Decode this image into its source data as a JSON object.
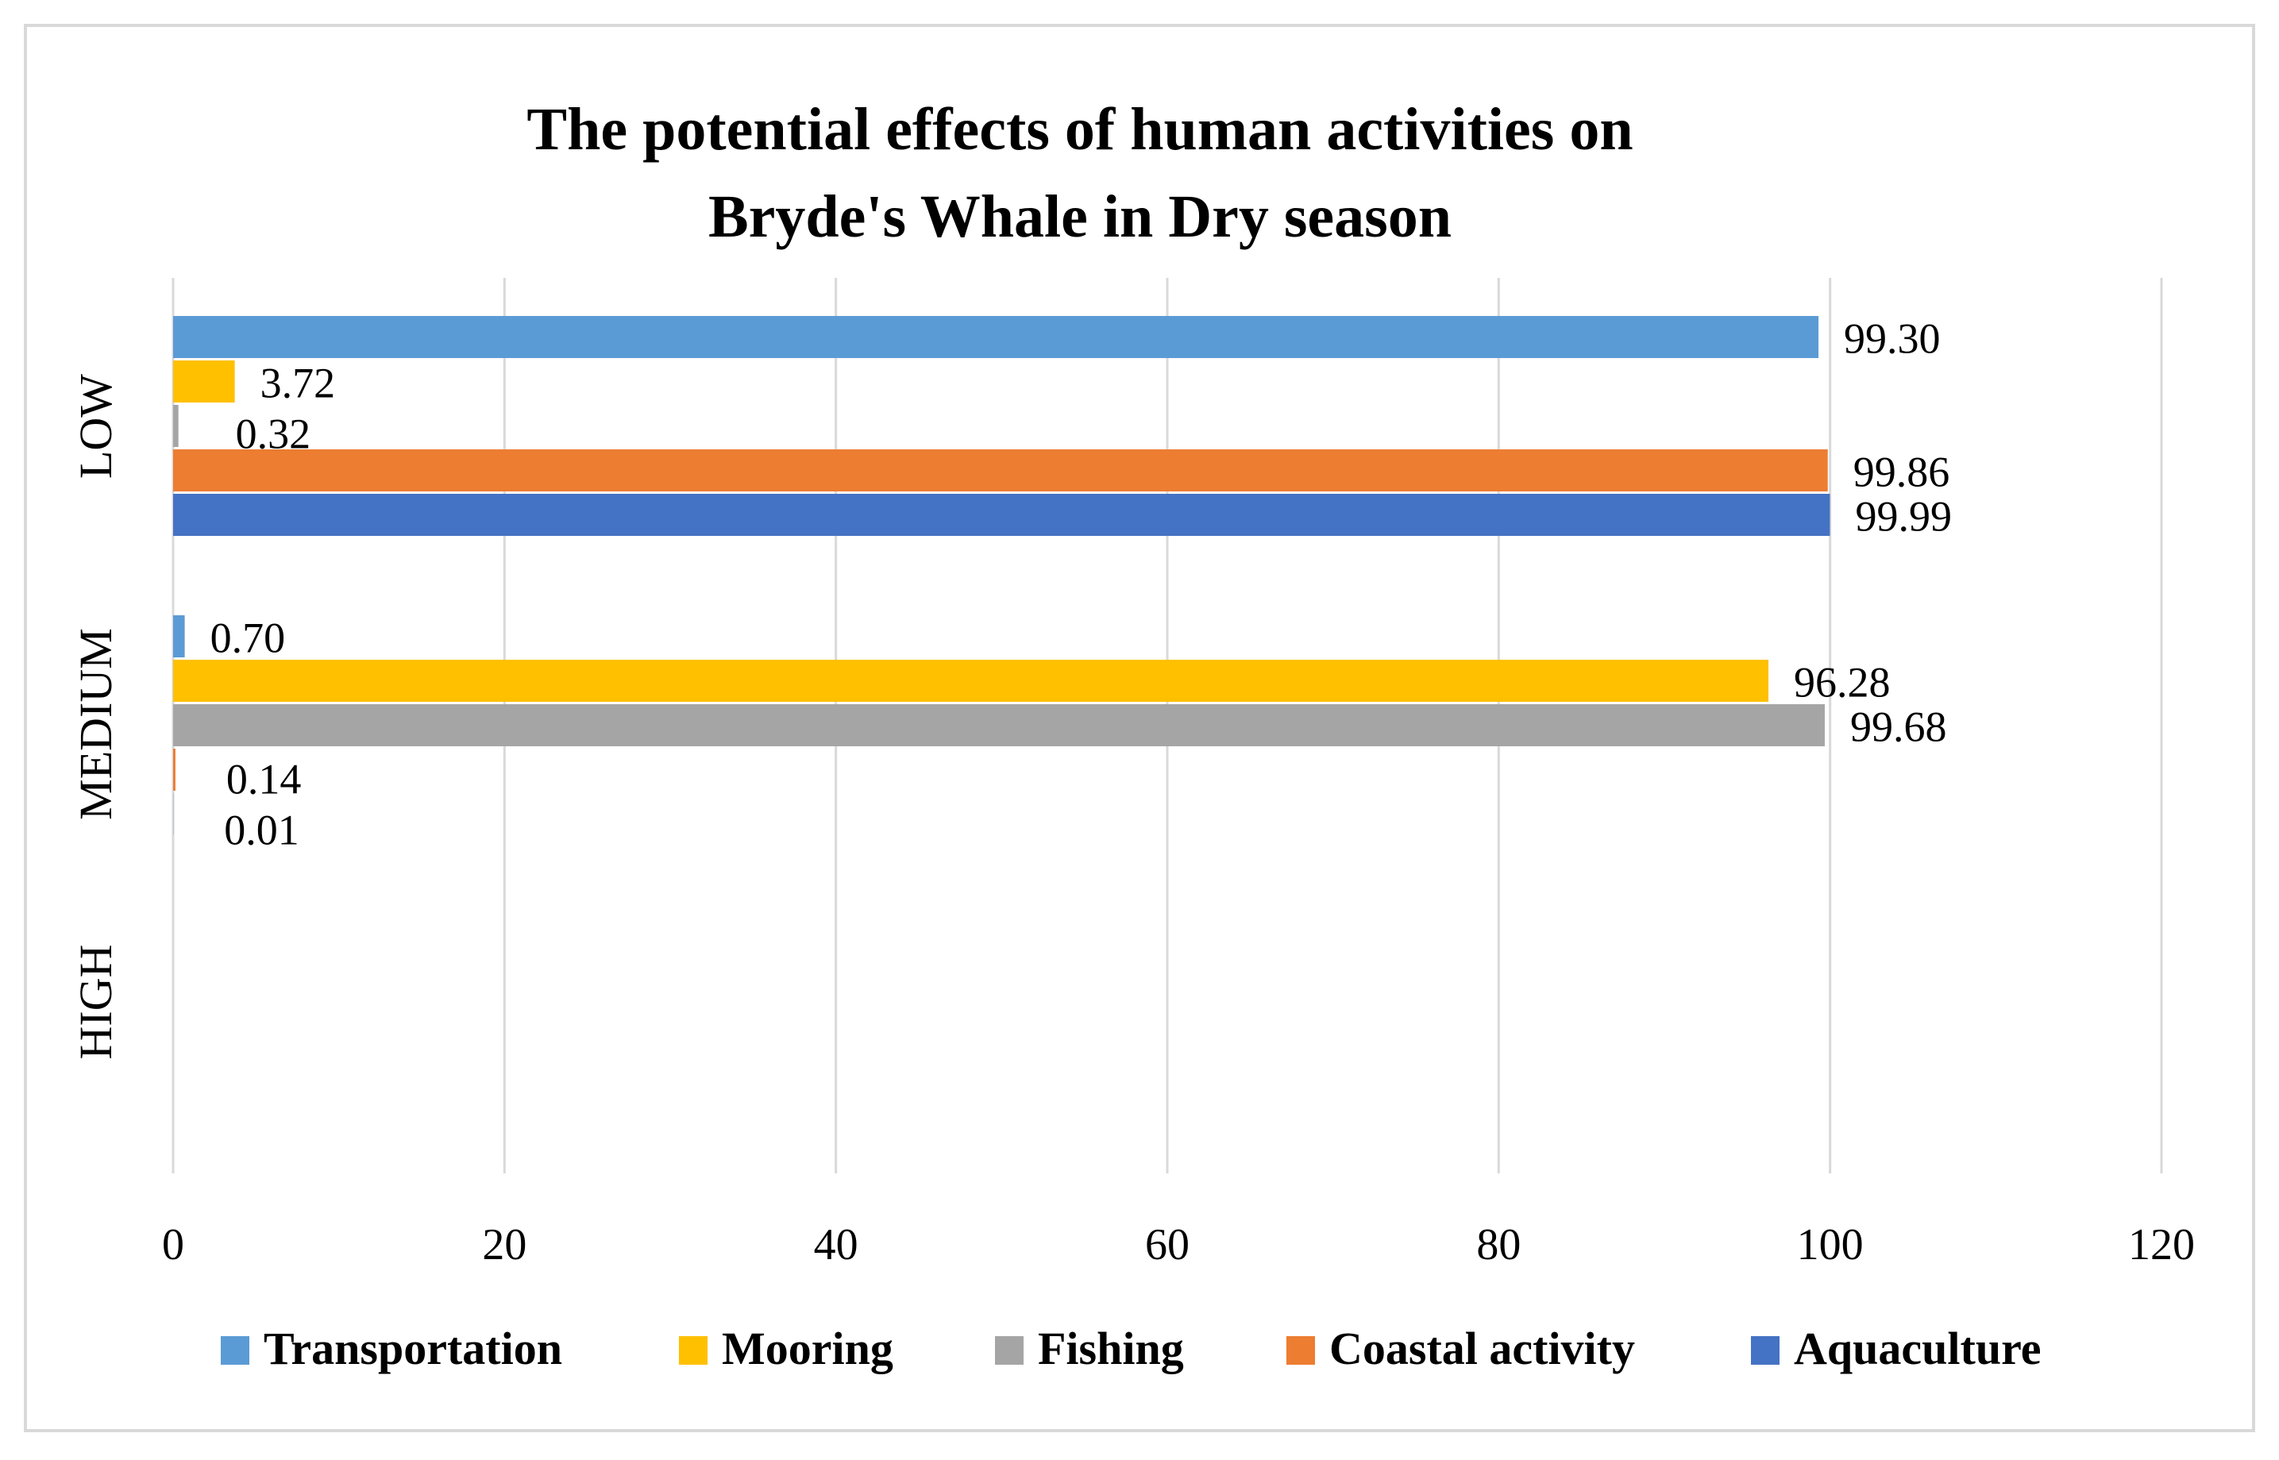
{
  "colors": {
    "Transportation": "#5B9BD5",
    "Mooring": "#FFC000",
    "Fishing": "#A5A5A5",
    "Coastal activity": "#ED7D31",
    "Aquaculture": "#4472C4",
    "gridline": "#D9D9D9",
    "frame": "#D9D9D9",
    "text": "#000000"
  },
  "chart_data": {
    "type": "bar",
    "orientation": "horizontal",
    "title": "The potential effects of human activities on Bryde's Whale in Dry season",
    "title_lines": [
      "The potential effects of human activities on",
      "Bryde's Whale in Dry season"
    ],
    "xlabel": "",
    "ylabel": "",
    "xlim": [
      0,
      120
    ],
    "x_ticks": [
      0,
      20,
      40,
      60,
      80,
      100,
      120
    ],
    "x_tick_labels": [
      "0",
      "20",
      "40",
      "60",
      "80",
      "100",
      "120"
    ],
    "grid": true,
    "legend_position": "bottom",
    "categories": [
      "LOW",
      "MEDIUM",
      "HIGH"
    ],
    "series": [
      {
        "name": "Transportation",
        "values": [
          99.3,
          0.7,
          null
        ],
        "labels": [
          "99.30",
          "0.70",
          ""
        ]
      },
      {
        "name": "Mooring",
        "values": [
          3.72,
          96.28,
          null
        ],
        "labels": [
          "3.72",
          "96.28",
          ""
        ]
      },
      {
        "name": "Fishing",
        "values": [
          0.32,
          99.68,
          null
        ],
        "labels": [
          "0.32",
          "99.68",
          ""
        ]
      },
      {
        "name": "Coastal activity",
        "values": [
          99.86,
          0.14,
          null
        ],
        "labels": [
          "99.86",
          "0.14",
          ""
        ]
      },
      {
        "name": "Aquaculture",
        "values": [
          99.99,
          0.01,
          null
        ],
        "labels": [
          "99.99",
          "0.01",
          ""
        ]
      }
    ]
  }
}
